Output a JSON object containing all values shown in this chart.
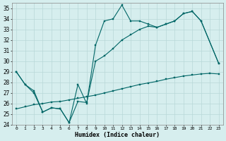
{
  "xlabel": "Humidex (Indice chaleur)",
  "xlim": [
    -0.5,
    23.5
  ],
  "ylim": [
    24,
    35.5
  ],
  "yticks": [
    24,
    25,
    26,
    27,
    28,
    29,
    30,
    31,
    32,
    33,
    34,
    35
  ],
  "xticks": [
    0,
    1,
    2,
    3,
    4,
    5,
    6,
    7,
    8,
    9,
    10,
    11,
    12,
    13,
    14,
    15,
    16,
    17,
    18,
    19,
    20,
    21,
    22,
    23
  ],
  "background_color": "#d6eeee",
  "grid_color": "#b8d8d8",
  "line_color": "#006666",
  "series": [
    {
      "x": [
        0,
        1,
        2,
        3,
        4,
        5,
        6,
        7,
        8,
        9,
        10,
        11,
        12,
        13,
        14,
        15,
        16,
        17,
        18,
        19,
        20,
        21,
        23
      ],
      "y": [
        29.0,
        27.8,
        27.0,
        25.2,
        25.6,
        25.5,
        24.2,
        27.8,
        26.0,
        31.5,
        33.8,
        34.0,
        35.3,
        33.8,
        33.8,
        33.5,
        33.2,
        33.5,
        33.8,
        34.5,
        34.7,
        33.8,
        29.8
      ]
    },
    {
      "x": [
        0,
        1,
        2,
        3,
        4,
        5,
        6,
        7,
        8,
        9,
        10,
        11,
        12,
        13,
        14,
        15,
        16,
        17,
        18,
        19,
        20,
        21,
        23
      ],
      "y": [
        29.0,
        27.8,
        27.2,
        25.2,
        25.6,
        25.5,
        24.2,
        26.2,
        26.1,
        30.0,
        30.5,
        31.2,
        32.0,
        32.5,
        33.0,
        33.3,
        33.2,
        33.5,
        33.8,
        34.5,
        34.7,
        33.8,
        29.8
      ]
    },
    {
      "x": [
        0,
        1,
        2,
        3,
        4,
        5,
        6,
        7,
        8,
        9,
        10,
        11,
        12,
        13,
        14,
        15,
        16,
        17,
        18,
        19,
        20,
        21,
        22,
        23
      ],
      "y": [
        25.5,
        25.7,
        25.9,
        26.0,
        26.15,
        26.2,
        26.35,
        26.5,
        26.65,
        26.8,
        27.0,
        27.2,
        27.4,
        27.6,
        27.8,
        27.95,
        28.1,
        28.3,
        28.45,
        28.6,
        28.7,
        28.8,
        28.85,
        28.8
      ]
    }
  ]
}
